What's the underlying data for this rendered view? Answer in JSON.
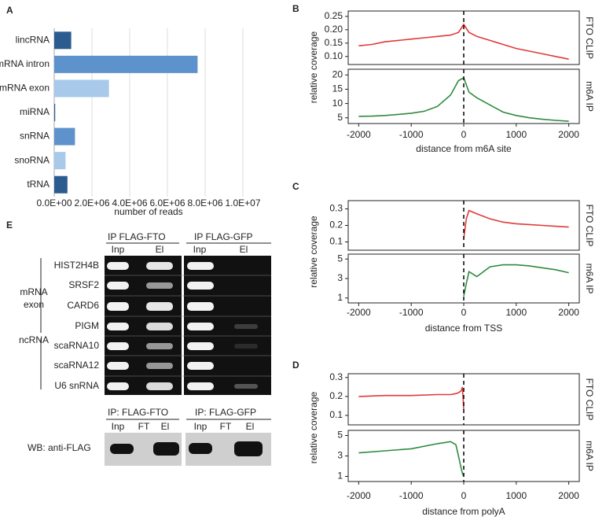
{
  "chart_data": [
    {
      "type": "bar",
      "panel": "A",
      "orientation": "horizontal",
      "categories": [
        "lincRNA",
        "mRNA intron",
        "mRNA exon",
        "miRNA",
        "snRNA",
        "snoRNA",
        "tRNA"
      ],
      "values": [
        900000,
        7600000,
        2900000,
        50000,
        1100000,
        600000,
        700000
      ],
      "colors": [
        "#2c5b90",
        "#5d92cc",
        "#a8c9ea",
        "#2c5b90",
        "#5d92cc",
        "#a8c9ea",
        "#2c5b90"
      ],
      "xlim": [
        0,
        10000000
      ],
      "xticks": [
        {
          "value": 0,
          "label": "0.0E+00"
        },
        {
          "value": 2000000,
          "label": "2.0E+06"
        },
        {
          "value": 4000000,
          "label": "4.0E+06"
        },
        {
          "value": 6000000,
          "label": "6.0E+06"
        },
        {
          "value": 8000000,
          "label": "8.0E+06"
        },
        {
          "value": 10000000,
          "label": "1.0E+07"
        }
      ],
      "xlabel": "number of reads",
      "grid": true
    },
    {
      "type": "line",
      "panel": "B",
      "ylabel": "relative coverage",
      "xlabel": "distance from m6A site",
      "x": [
        -2000,
        -1750,
        -1500,
        -1250,
        -1000,
        -750,
        -500,
        -250,
        -100,
        0,
        100,
        250,
        500,
        750,
        1000,
        1250,
        1500,
        1750,
        2000
      ],
      "xlim": [
        -2200,
        2200
      ],
      "xticks": [
        -2000,
        -1000,
        0,
        1000,
        2000
      ],
      "vline": 0,
      "panels": [
        {
          "name": "FTO CLIP",
          "color": "#e03a3a",
          "ylim": [
            0.07,
            0.27
          ],
          "yticks": [
            {
              "value": 0.1,
              "label": "0.10"
            },
            0.15,
            {
              "value": 0.2,
              "label": "0.20"
            },
            0.25
          ],
          "values": [
            0.14,
            0.145,
            0.155,
            0.16,
            0.165,
            0.17,
            0.175,
            0.18,
            0.19,
            0.22,
            0.19,
            0.175,
            0.16,
            0.145,
            0.13,
            0.12,
            0.11,
            0.1,
            0.09
          ]
        },
        {
          "name": "m6A IP",
          "color": "#2e8b3e",
          "ylim": [
            3,
            22
          ],
          "yticks": [
            5,
            10,
            15,
            20
          ],
          "values": [
            5.5,
            5.6,
            5.8,
            6.2,
            6.6,
            7.3,
            9,
            13,
            18,
            19,
            14,
            12,
            9.5,
            7,
            5.8,
            5,
            4.5,
            4.1,
            3.8
          ]
        }
      ]
    },
    {
      "type": "line",
      "panel": "C",
      "ylabel": "relative coverage",
      "xlabel": "distance from TSS",
      "x": [
        0,
        50,
        100,
        250,
        500,
        750,
        1000,
        1250,
        1500,
        1750,
        2000
      ],
      "xlim": [
        -2200,
        2200
      ],
      "xticks": [
        -2000,
        -1000,
        0,
        1000,
        2000
      ],
      "vline": 0,
      "panels": [
        {
          "name": "FTO CLIP",
          "color": "#e03a3a",
          "ylim": [
            0.05,
            0.35
          ],
          "yticks": [
            0.1,
            0.2,
            0.3
          ],
          "values": [
            0.12,
            0.24,
            0.29,
            0.27,
            0.24,
            0.22,
            0.21,
            0.205,
            0.2,
            0.195,
            0.19
          ]
        },
        {
          "name": "m6A IP",
          "color": "#2e8b3e",
          "ylim": [
            0.5,
            5.5
          ],
          "yticks": [
            1,
            3,
            5
          ],
          "values": [
            1.2,
            2.5,
            3.7,
            3.2,
            4.2,
            4.4,
            4.4,
            4.3,
            4.1,
            3.9,
            3.6
          ]
        }
      ]
    },
    {
      "type": "line",
      "panel": "D",
      "ylabel": "relative coverage",
      "xlabel": "distance from polyA",
      "x": [
        -2000,
        -1500,
        -1000,
        -500,
        -250,
        -150,
        -100,
        -50,
        -25,
        0
      ],
      "xlim": [
        -2200,
        2200
      ],
      "xticks": [
        -2000,
        -1000,
        0,
        1000,
        2000
      ],
      "vline": 0,
      "panels": [
        {
          "name": "FTO CLIP",
          "color": "#e03a3a",
          "ylim": [
            0.05,
            0.32
          ],
          "yticks": [
            0.1,
            0.2,
            0.3
          ],
          "values": [
            0.2,
            0.205,
            0.205,
            0.21,
            0.21,
            0.215,
            0.22,
            0.23,
            0.25,
            0.13
          ]
        },
        {
          "name": "m6A IP",
          "color": "#2e8b3e",
          "ylim": [
            0.5,
            5.5
          ],
          "yticks": [
            1,
            3,
            5
          ],
          "values": [
            3.3,
            3.5,
            3.7,
            4.2,
            4.4,
            4.1,
            3,
            1.8,
            1.3,
            1
          ]
        }
      ]
    }
  ],
  "panel_e": {
    "label": "E",
    "ip_headers": [
      "IP FLAG-FTO",
      "IP FLAG-GFP"
    ],
    "lane_labels": [
      "Inp",
      "El",
      "Inp",
      "El"
    ],
    "genes": [
      "HIST2H4B",
      "SRSF2",
      "CARD6",
      "PIGM",
      "scaRNA10",
      "scaRNA12",
      "U6 snRNA"
    ],
    "groups": [
      [
        "mRNA",
        "exon"
      ],
      [
        "ncRNA"
      ]
    ],
    "wb": {
      "ip_headers": [
        "IP: FLAG-FTO",
        "IP: FLAG-GFP"
      ],
      "lane_labels": [
        "Inp",
        "FT",
        "El",
        "Inp",
        "FT",
        "El"
      ],
      "label": "WB: anti-FLAG"
    }
  }
}
